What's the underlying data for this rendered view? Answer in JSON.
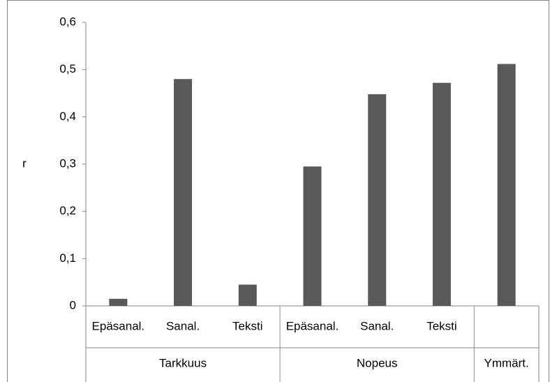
{
  "chart_data": {
    "type": "bar",
    "ylabel": "r",
    "color": "#595959",
    "category_groups": [
      {
        "name": "Tarkkuus",
        "categories": [
          "Epäsanal.",
          "Sanal.",
          "Teksti"
        ]
      },
      {
        "name": "Nopeus",
        "categories": [
          "Epäsanal.",
          "Sanal.",
          "Teksti"
        ]
      },
      {
        "name": "Ymmärt.",
        "categories": [
          null
        ]
      }
    ],
    "values": [
      0.015,
      0.48,
      0.045,
      0.295,
      0.448,
      0.472,
      0.512
    ],
    "ylim": [
      0,
      0.6
    ],
    "yticks": [
      0,
      {
        "value": 0.1,
        "label": "0,1"
      },
      {
        "value": 0.2,
        "label": "0,2"
      },
      {
        "value": 0.3,
        "label": "0,3"
      },
      {
        "value": 0.4,
        "label": "0,4"
      },
      {
        "value": 0.5,
        "label": "0,5"
      },
      {
        "value": 0.6,
        "label": "0,6"
      }
    ],
    "grid": false
  }
}
